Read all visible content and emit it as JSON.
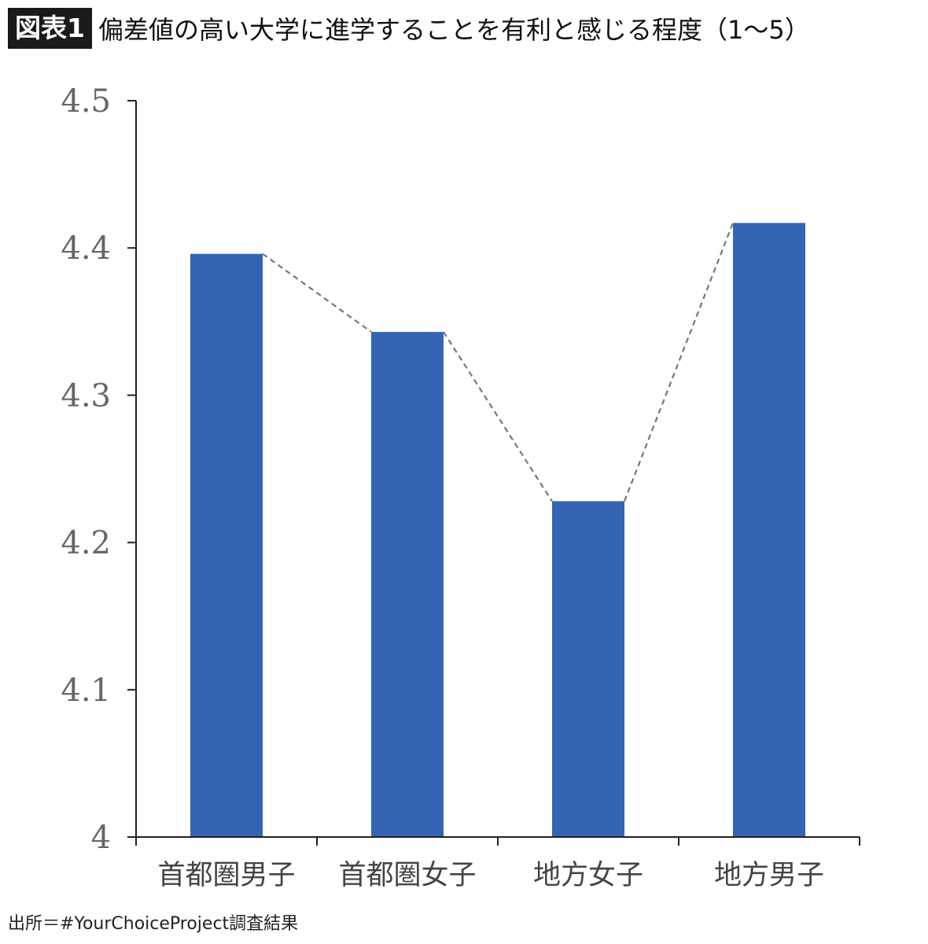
{
  "header": {
    "figure_label": "図表1",
    "title": "偏差値の高い大学に進学することを有利と感じる程度（1〜5）"
  },
  "source": "出所＝#YourChoiceProject調査結果",
  "colors": {
    "bar": "#3464b4",
    "axis": "#222222",
    "connector": "#777777"
  },
  "chart_data": {
    "type": "bar",
    "categories": [
      "首都圏男子",
      "首都圏女子",
      "地方女子",
      "地方男子"
    ],
    "values": [
      4.396,
      4.343,
      4.228,
      4.417
    ],
    "ylim": [
      4,
      4.5
    ],
    "yticks": [
      "4",
      "4.1",
      "4.2",
      "4.3",
      "4.4",
      "4.5"
    ],
    "title": "偏差値の高い大学に進学することを有利と感じる程度（1〜5）",
    "xlabel": "",
    "ylabel": "",
    "grid": false,
    "connector_lines": "dashed"
  }
}
